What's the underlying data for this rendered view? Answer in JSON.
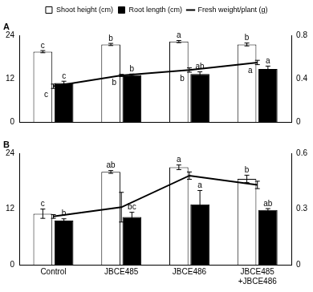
{
  "chart_data": [
    {
      "type": "bar",
      "title": "A",
      "legend": "top",
      "grid": false,
      "categories": [
        null,
        null,
        null,
        null
      ],
      "ylim": [
        0,
        24
      ],
      "yticks": [
        0,
        12,
        24
      ],
      "y2lim": [
        0,
        0.8
      ],
      "y2ticks": [
        0,
        0.4,
        0.8
      ],
      "series": [
        {
          "name": "Shoot height (cm)",
          "type": "bar",
          "color": "#ffffff",
          "values": [
            19.5,
            21.5,
            22.3,
            21.5
          ],
          "errors": [
            0.3,
            0.3,
            0.3,
            0.4
          ],
          "letters": [
            "c",
            "b",
            "a",
            "b"
          ]
        },
        {
          "name": "Root length (cm)",
          "type": "bar",
          "color": "#000000",
          "values": [
            10.8,
            13.0,
            13.3,
            14.7
          ],
          "errors": [
            0.5,
            0.3,
            0.6,
            0.8
          ],
          "letters": [
            "c",
            "b",
            "ab",
            "a"
          ]
        },
        {
          "name": "Fresh weight/plant (g)",
          "type": "line",
          "axis": "y2",
          "color": "#000000",
          "marker": "none",
          "values": [
            0.33,
            0.43,
            0.48,
            0.55
          ],
          "errors": [
            0.02,
            0.01,
            0.02,
            0.02
          ],
          "letters": [
            "c",
            "b",
            "b",
            "a"
          ]
        }
      ]
    },
    {
      "type": "bar",
      "title": "B",
      "grid": false,
      "categories": [
        "Control",
        "JBCE485",
        "JBCE486",
        "JBCE485\n+JBCE486"
      ],
      "ylim": [
        0,
        24
      ],
      "yticks": [
        0,
        12,
        24
      ],
      "y2lim": [
        0,
        0.6
      ],
      "y2ticks": [
        0,
        0.3,
        0.6
      ],
      "series": [
        {
          "name": "Shoot height (cm)",
          "type": "bar",
          "color": "#ffffff",
          "values": [
            11.0,
            20.0,
            21.0,
            18.5
          ],
          "errors": [
            1.0,
            0.3,
            0.5,
            0.8
          ],
          "letters": [
            "c",
            "ab",
            "a",
            "b"
          ]
        },
        {
          "name": "Root length (cm)",
          "type": "bar",
          "color": "#000000",
          "values": [
            9.5,
            10.3,
            13.0,
            11.8
          ],
          "errors": [
            0.4,
            1.0,
            3.0,
            0.3
          ],
          "letters": [
            "b",
            "bc",
            "a",
            "ab"
          ]
        },
        {
          "name": "Fresh weight/plant (g)",
          "type": "line",
          "axis": "y2",
          "color": "#000000",
          "marker": "none",
          "values": [
            0.26,
            0.31,
            0.48,
            0.43
          ],
          "errors": [
            0.01,
            0.08,
            0.02,
            0.02
          ]
        }
      ]
    }
  ]
}
